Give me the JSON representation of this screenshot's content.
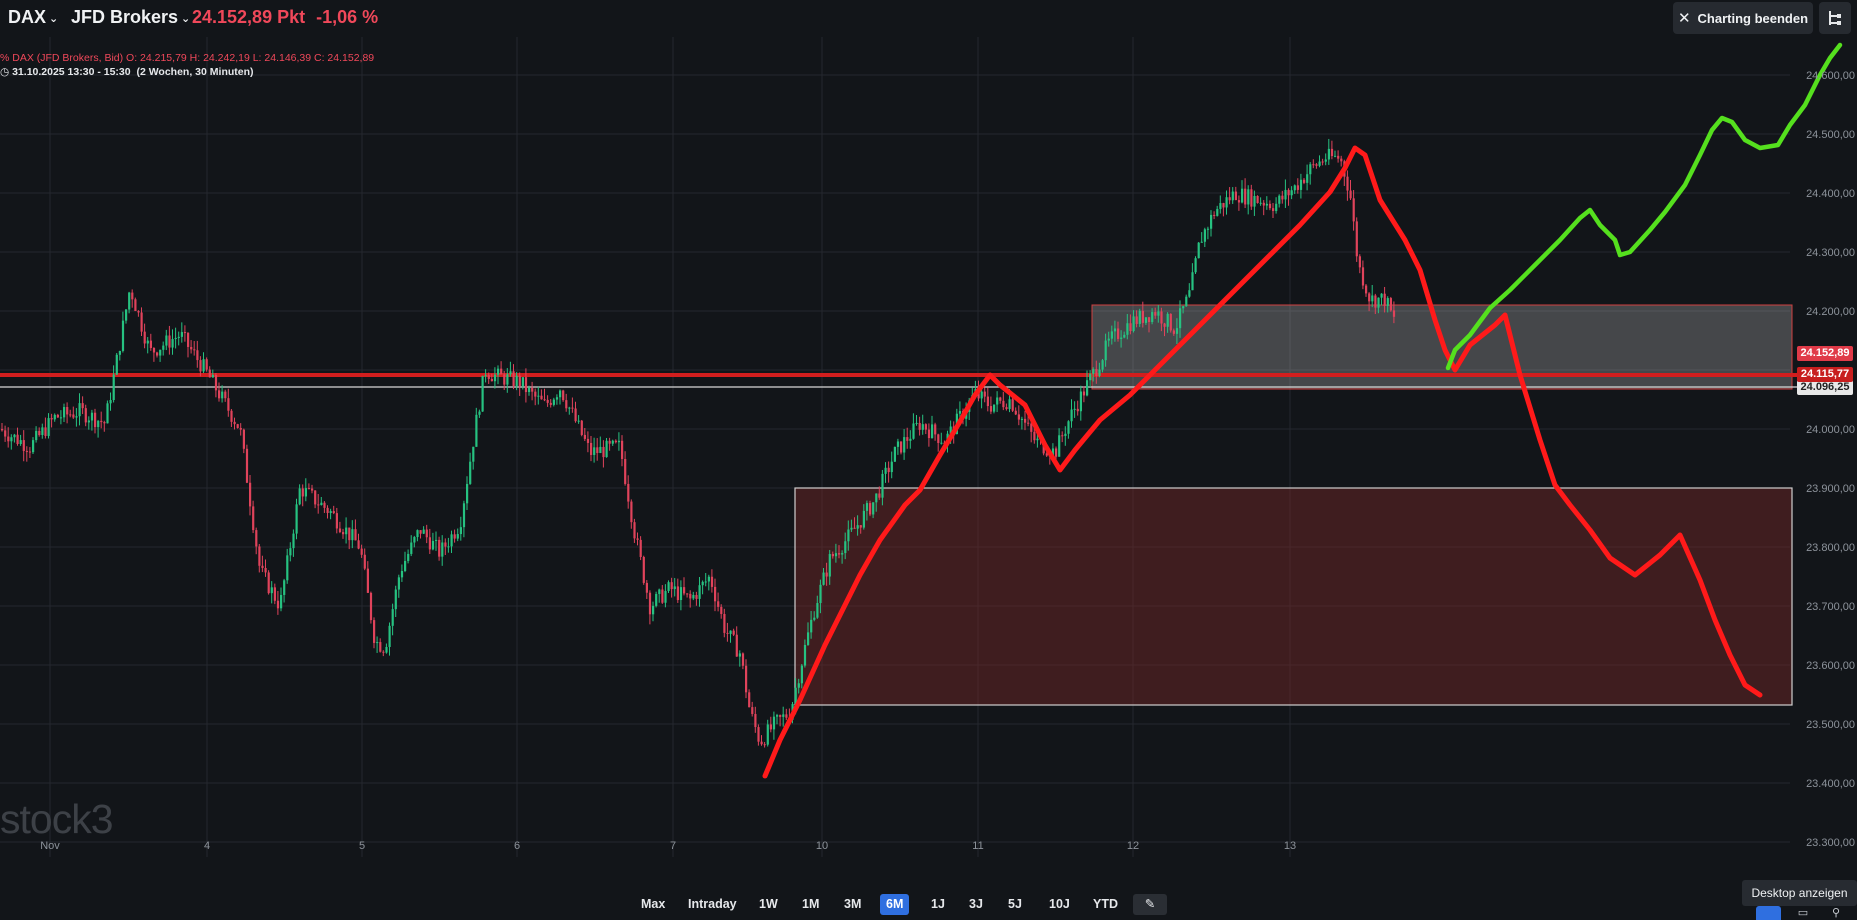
{
  "header": {
    "symbol": "DAX",
    "broker": "JFD Brokers",
    "price": "24.152,89 Pkt",
    "change": "-1,06 %",
    "end_button": "Charting beenden"
  },
  "info": {
    "line1": "DAX (JFD Brokers, Bid)  O: 24.215,79   H: 24.242,19   L: 24.146,39   C: 24.152,89",
    "line1_prefix": "%",
    "line2_date": "31.10.2025 13:30 - 15:30",
    "line2_range": "(2 Wochen, 30 Minuten)"
  },
  "axis": {
    "y_labels": [
      "24.600,00",
      "24.500,00",
      "24.400,00",
      "24.300,00",
      "24.200,00",
      "24.000,00",
      "23.900,00",
      "23.800,00",
      "23.700,00",
      "23.600,00",
      "23.500,00",
      "23.400,00",
      "23.300,00"
    ],
    "x_labels": [
      "Nov",
      "4",
      "5",
      "6",
      "7",
      "10",
      "11",
      "12",
      "13"
    ]
  },
  "price_tags": [
    {
      "text": "24.152,89",
      "color": "#e03a48"
    },
    {
      "text": "24.115,77",
      "color": "#c81e1e"
    },
    {
      "text": "24.096,25",
      "color": "#e8e8e8"
    }
  ],
  "ranges": [
    "Max",
    "Intraday",
    "1W",
    "1M",
    "3M",
    "6M",
    "1J",
    "3J",
    "5J",
    "10J",
    "YTD"
  ],
  "active_range": "6M",
  "tooltip": "Desktop anzeigen",
  "watermark": "stock3",
  "colors": {
    "up": "#26c281",
    "down": "#e0435b",
    "drawing_red": "#ff1a1a",
    "drawing_green": "#55e01e"
  }
}
